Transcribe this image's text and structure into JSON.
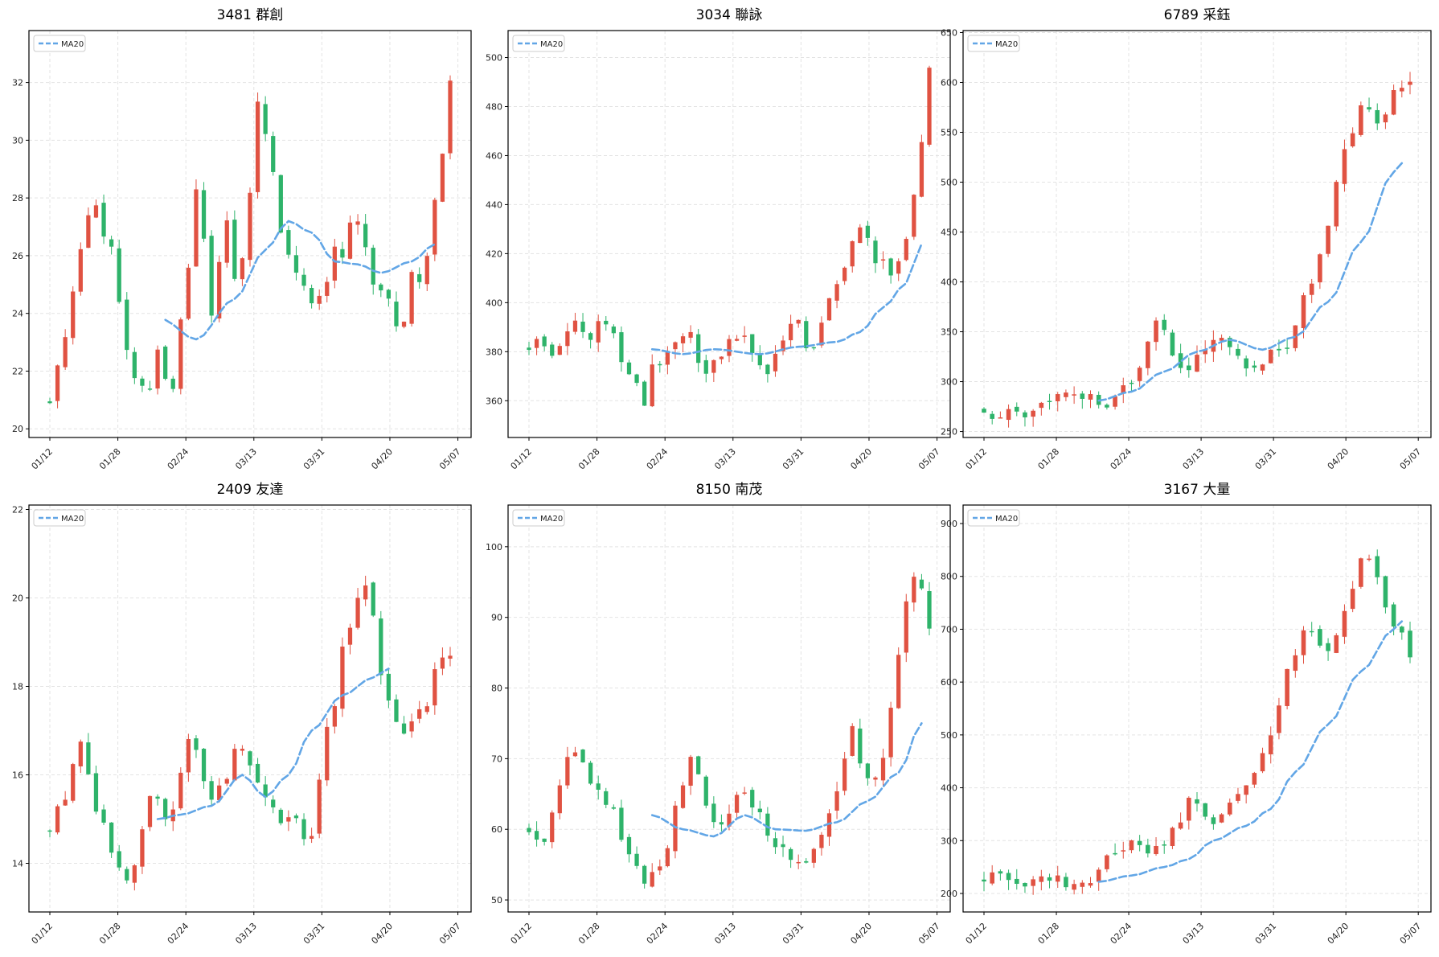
{
  "colors": {
    "up": "#e05242",
    "down": "#2eb36a",
    "ma": "#62a6e6"
  },
  "legend_label": "MA20",
  "x_tick_labels": [
    "01/12",
    "01/28",
    "02/24",
    "03/13",
    "03/31",
    "04/20",
    "05/07"
  ],
  "chart_data": [
    {
      "type": "candlestick",
      "title": "3481 群創",
      "ylim": [
        19.7,
        33.8
      ],
      "yticks": [
        20,
        22,
        24,
        26,
        28,
        30,
        32
      ],
      "legend": "upper left",
      "grid": true,
      "ohlc_anchors": [
        [
          21.0,
          22.0
        ],
        [
          22.5,
          24.5
        ],
        [
          25.0,
          26.5
        ],
        [
          27.5,
          28.5
        ],
        [
          26.0,
          27.5
        ],
        [
          25.5,
          24.5
        ],
        [
          23.0,
          21.5
        ],
        [
          22.0,
          21.0
        ],
        [
          21.5,
          23.0
        ],
        [
          22.0,
          21.0
        ],
        [
          22.5,
          24.5
        ],
        [
          26.0,
          28.5
        ],
        [
          27.5,
          24.0
        ],
        [
          24.0,
          26.5
        ],
        [
          27.5,
          25.0
        ],
        [
          25.0,
          28.0
        ],
        [
          28.5,
          32.5
        ],
        [
          30.0,
          29.0
        ],
        [
          27.5,
          26.0
        ],
        [
          26.0,
          25.0
        ],
        [
          25.0,
          24.5
        ],
        [
          24.0,
          25.5
        ],
        [
          25.0,
          26.5
        ],
        [
          26.0,
          27.0
        ],
        [
          27.5,
          26.5
        ],
        [
          26.0,
          25.0
        ],
        [
          25.0,
          24.5
        ],
        [
          24.0,
          23.5
        ],
        [
          24.0,
          25.5
        ],
        [
          25.0,
          26.0
        ],
        [
          26.0,
          29.0
        ],
        [
          29.5,
          32.0
        ]
      ],
      "ma20_anchors": [
        [
          14.5,
          23.8
        ],
        [
          19,
          23.1
        ],
        [
          24,
          24.5
        ],
        [
          28,
          26.2
        ],
        [
          31,
          27.2
        ],
        [
          34,
          26.8
        ],
        [
          37,
          25.8
        ],
        [
          40,
          25.7
        ],
        [
          43,
          25.4
        ],
        [
          47,
          25.8
        ],
        [
          50,
          26.4
        ]
      ],
      "seed": 11
    },
    {
      "type": "candlestick",
      "title": "3034 聯詠",
      "ylim": [
        345,
        511
      ],
      "yticks": [
        360,
        380,
        400,
        420,
        440,
        460,
        480,
        500
      ],
      "legend": "upper left",
      "grid": true,
      "ohlc_anchors": [
        [
          382,
          384
        ],
        [
          385,
          380
        ],
        [
          381,
          386
        ],
        [
          390,
          392
        ],
        [
          390,
          384
        ],
        [
          393,
          395
        ],
        [
          390,
          380
        ],
        [
          376,
          372
        ],
        [
          366,
          360
        ],
        [
          372,
          376
        ],
        [
          379,
          382
        ],
        [
          384,
          388
        ],
        [
          385,
          377
        ],
        [
          373,
          376
        ],
        [
          378,
          383
        ],
        [
          385,
          388
        ],
        [
          386,
          378
        ],
        [
          375,
          370
        ],
        [
          376,
          382
        ],
        [
          386,
          396
        ],
        [
          390,
          380
        ],
        [
          384,
          390
        ],
        [
          398,
          405
        ],
        [
          410,
          420
        ],
        [
          425,
          430
        ],
        [
          425,
          418
        ],
        [
          416,
          412
        ],
        [
          414,
          420
        ],
        [
          430,
          450
        ],
        [
          470,
          498
        ]
      ],
      "ma20_anchors": [
        [
          16,
          381
        ],
        [
          20,
          379
        ],
        [
          24,
          381
        ],
        [
          30,
          379
        ],
        [
          35,
          382
        ],
        [
          40,
          384
        ],
        [
          43,
          388
        ],
        [
          46,
          398
        ],
        [
          49,
          408
        ],
        [
          51,
          424
        ]
      ],
      "seed": 23
    },
    {
      "type": "candlestick",
      "title": "6789 采鈺",
      "ylim": [
        244,
        652
      ],
      "yticks": [
        250,
        300,
        350,
        400,
        450,
        500,
        550,
        600,
        650
      ],
      "legend": "upper left",
      "grid": true,
      "ohlc_anchors": [
        [
          272,
          268
        ],
        [
          266,
          270
        ],
        [
          272,
          268
        ],
        [
          275,
          283
        ],
        [
          288,
          292
        ],
        [
          290,
          285
        ],
        [
          285,
          282
        ],
        [
          278,
          285
        ],
        [
          292,
          300
        ],
        [
          320,
          350
        ],
        [
          365,
          345
        ],
        [
          325,
          310
        ],
        [
          315,
          330
        ],
        [
          340,
          345
        ],
        [
          335,
          325
        ],
        [
          320,
          310
        ],
        [
          315,
          330
        ],
        [
          335,
          340
        ],
        [
          360,
          390
        ],
        [
          410,
          430
        ],
        [
          470,
          520
        ],
        [
          540,
          570
        ],
        [
          585,
          560
        ],
        [
          560,
          590
        ],
        [
          590,
          600
        ]
      ],
      "ma20_anchors": [
        [
          14,
          281
        ],
        [
          18,
          290
        ],
        [
          22,
          310
        ],
        [
          26,
          330
        ],
        [
          30,
          342
        ],
        [
          34,
          332
        ],
        [
          38,
          345
        ],
        [
          42,
          380
        ],
        [
          46,
          440
        ],
        [
          50,
          510
        ],
        [
          51,
          519
        ]
      ],
      "seed": 37
    },
    {
      "type": "candlestick",
      "title": "2409 友達",
      "ylim": [
        12.9,
        22.1
      ],
      "yticks": [
        14,
        16,
        18,
        20,
        22
      ],
      "legend": "upper left",
      "grid": true,
      "ohlc_anchors": [
        [
          14.8,
          15.3
        ],
        [
          15.5,
          16.8
        ],
        [
          16.5,
          15.3
        ],
        [
          15.0,
          14.2
        ],
        [
          14.0,
          13.6
        ],
        [
          14.5,
          15.5
        ],
        [
          15.5,
          15.0
        ],
        [
          15.2,
          16.5
        ],
        [
          16.8,
          16.2
        ],
        [
          15.3,
          15.8
        ],
        [
          16.0,
          16.8
        ],
        [
          16.5,
          15.8
        ],
        [
          15.6,
          15.2
        ],
        [
          14.8,
          15.2
        ],
        [
          14.8,
          14.2
        ],
        [
          15.5,
          17.0
        ],
        [
          17.5,
          19.0
        ],
        [
          19.5,
          20.5
        ],
        [
          20.0,
          18.5
        ],
        [
          17.8,
          17.2
        ],
        [
          17.0,
          17.4
        ],
        [
          17.3,
          18.2
        ],
        [
          18.5,
          18.8
        ]
      ],
      "ma20_anchors": [
        [
          14,
          15.0
        ],
        [
          17,
          15.1
        ],
        [
          21,
          15.3
        ],
        [
          25,
          16.0
        ],
        [
          28,
          15.5
        ],
        [
          31,
          16.0
        ],
        [
          34,
          17.0
        ],
        [
          38,
          17.8
        ],
        [
          42,
          18.2
        ],
        [
          44,
          18.4
        ]
      ],
      "seed": 53
    },
    {
      "type": "candlestick",
      "title": "8150 南茂",
      "ylim": [
        48.3,
        105.9
      ],
      "yticks": [
        50,
        60,
        70,
        80,
        90,
        100
      ],
      "legend": "upper left",
      "grid": true,
      "ohlc_anchors": [
        [
          60,
          58
        ],
        [
          58,
          63
        ],
        [
          68,
          72
        ],
        [
          70,
          66
        ],
        [
          66,
          64
        ],
        [
          62,
          58
        ],
        [
          56,
          53
        ],
        [
          53,
          55
        ],
        [
          56,
          62
        ],
        [
          65,
          70
        ],
        [
          68,
          62
        ],
        [
          60,
          62
        ],
        [
          63,
          66
        ],
        [
          64,
          62
        ],
        [
          60,
          58
        ],
        [
          57,
          55
        ],
        [
          55,
          56
        ],
        [
          58,
          62
        ],
        [
          64,
          70
        ],
        [
          75,
          68
        ],
        [
          66,
          68
        ],
        [
          72,
          82
        ],
        [
          90,
          97
        ],
        [
          95,
          88
        ]
      ],
      "ma20_anchors": [
        [
          16,
          62
        ],
        [
          20,
          60
        ],
        [
          24,
          59
        ],
        [
          28,
          62
        ],
        [
          32,
          60
        ],
        [
          36,
          59.8
        ],
        [
          40,
          61
        ],
        [
          44,
          64
        ],
        [
          48,
          68
        ],
        [
          51,
          75
        ]
      ],
      "seed": 71
    },
    {
      "type": "candlestick",
      "title": "3167 大量",
      "ylim": [
        165,
        935
      ],
      "yticks": [
        200,
        300,
        400,
        500,
        600,
        700,
        800,
        900
      ],
      "legend": "upper left",
      "grid": true,
      "ohlc_anchors": [
        [
          228,
          236
        ],
        [
          230,
          222
        ],
        [
          222,
          226
        ],
        [
          230,
          235
        ],
        [
          228,
          214
        ],
        [
          210,
          214
        ],
        [
          225,
          262
        ],
        [
          270,
          290
        ],
        [
          295,
          300
        ],
        [
          270,
          285
        ],
        [
          300,
          320
        ],
        [
          355,
          380
        ],
        [
          340,
          330
        ],
        [
          345,
          360
        ],
        [
          380,
          410
        ],
        [
          430,
          490
        ],
        [
          520,
          600
        ],
        [
          640,
          700
        ],
        [
          700,
          680
        ],
        [
          650,
          700
        ],
        [
          740,
          790
        ],
        [
          860,
          820
        ],
        [
          760,
          720
        ],
        [
          690,
          650
        ]
      ],
      "ma20_anchors": [
        [
          14,
          222
        ],
        [
          18,
          234
        ],
        [
          22,
          250
        ],
        [
          25,
          265
        ],
        [
          28,
          300
        ],
        [
          32,
          328
        ],
        [
          35,
          360
        ],
        [
          38,
          430
        ],
        [
          42,
          520
        ],
        [
          46,
          620
        ],
        [
          50,
          700
        ],
        [
          51,
          715
        ]
      ],
      "seed": 89
    }
  ]
}
